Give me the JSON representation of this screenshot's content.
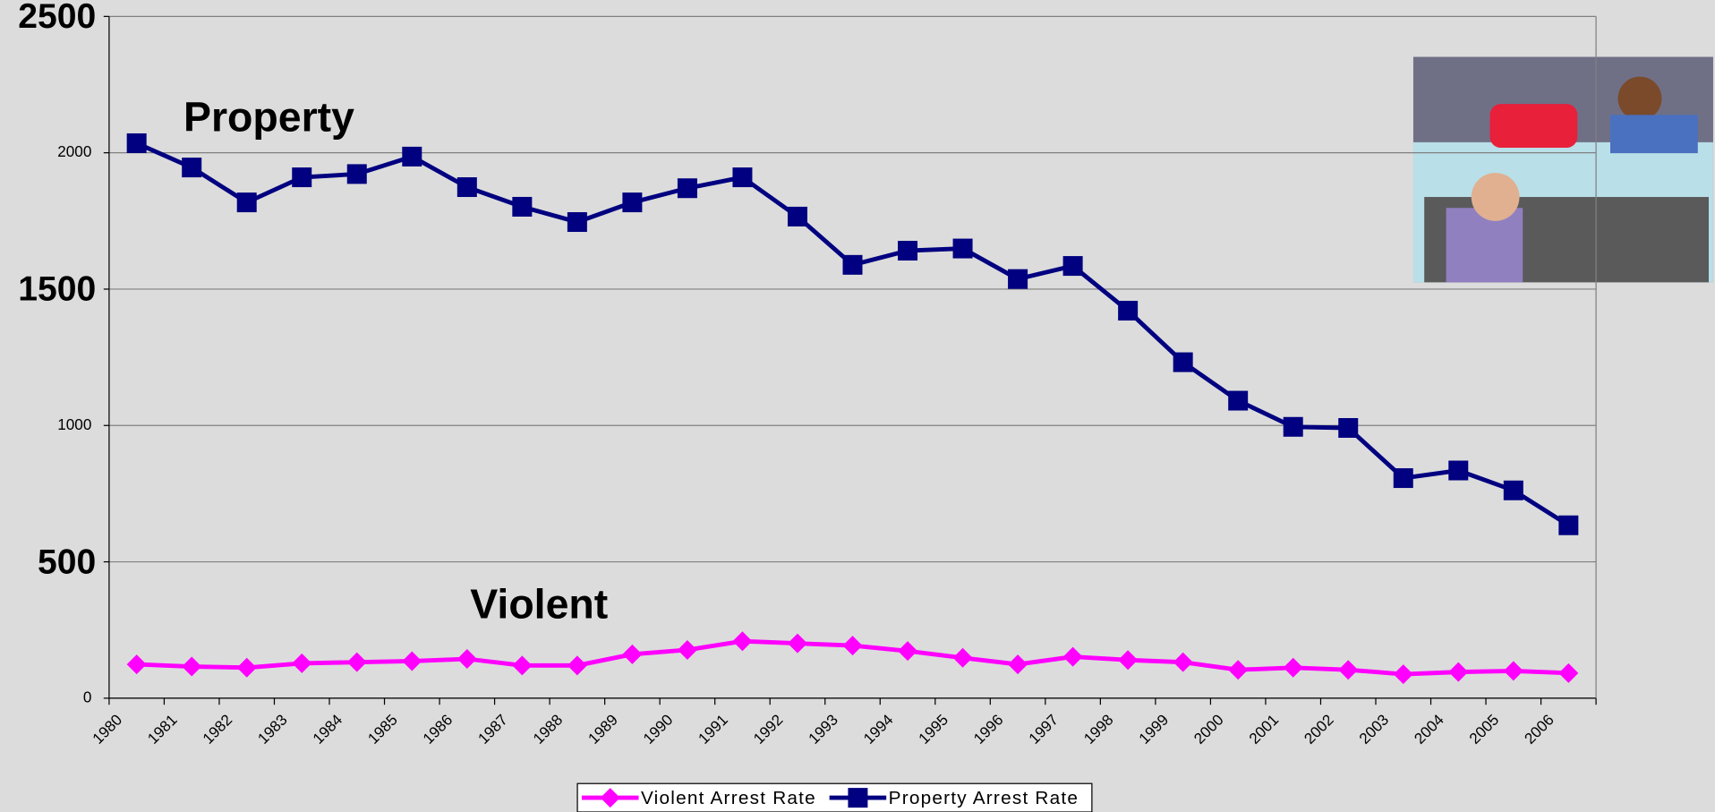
{
  "chart_data": {
    "type": "line",
    "annotations": [
      "Property",
      "Violent"
    ],
    "categories": [
      "1980",
      "1981",
      "1982",
      "1983",
      "1984",
      "1985",
      "1986",
      "1987",
      "1988",
      "1989",
      "1990",
      "1991",
      "1992",
      "1993",
      "1994",
      "1995",
      "1996",
      "1997",
      "1998",
      "1999",
      "2000",
      "2001",
      "2002",
      "2003",
      "2004",
      "2005",
      "2006"
    ],
    "series": [
      {
        "name": "Violent Arrest Rate",
        "color": "#ff00ff",
        "marker": "diamond",
        "values": [
          124,
          116,
          112,
          128,
          132,
          136,
          144,
          120,
          120,
          161,
          177,
          209,
          201,
          193,
          173,
          148,
          124,
          152,
          140,
          132,
          104,
          112,
          104,
          88,
          96,
          100,
          92
        ]
      },
      {
        "name": "Property Arrest Rate",
        "color": "#000080",
        "marker": "square",
        "values": [
          2035,
          1946,
          1818,
          1910,
          1922,
          1986,
          1874,
          1802,
          1746,
          1818,
          1870,
          1910,
          1766,
          1589,
          1641,
          1649,
          1537,
          1585,
          1421,
          1232,
          1091,
          995,
          991,
          807,
          835,
          762,
          634
        ]
      }
    ],
    "ylim": [
      0,
      2500
    ],
    "yticks": [
      0,
      500,
      1000,
      1500,
      2000,
      2500
    ],
    "grid": true,
    "legend": "bottom"
  }
}
